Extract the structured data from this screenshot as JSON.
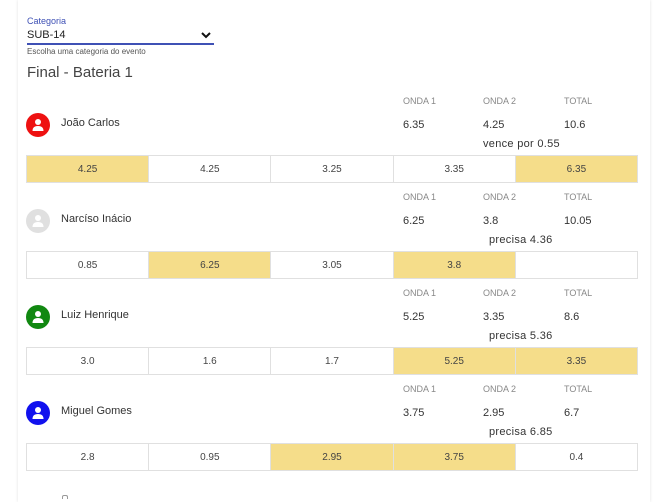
{
  "category": {
    "label": "Categoria",
    "value": "SUB-14",
    "help": "Escolha uma categoria do evento"
  },
  "heat_title": "Final - Bateria 1",
  "columns": {
    "wave1": "ONDA 1",
    "wave2": "ONDA 2",
    "total": "TOTAL"
  },
  "athletes": [
    {
      "name": "João Carlos",
      "avatar_color": "#ee1111",
      "onda1": "6.35",
      "onda2": "4.25",
      "total": "10.6",
      "status": "vence por 0.55",
      "waves": [
        "4.25",
        "4.25",
        "3.25",
        "3.35",
        "6.35"
      ],
      "highlight": [
        true,
        false,
        false,
        false,
        true
      ]
    },
    {
      "name": "Narcíso Inácio",
      "avatar_color": "#e0e0e0",
      "onda1": "6.25",
      "onda2": "3.8",
      "total": "10.05",
      "status": "precisa 4.36",
      "waves": [
        "0.85",
        "6.25",
        "3.05",
        "3.8",
        ""
      ],
      "highlight": [
        false,
        true,
        false,
        true,
        false
      ]
    },
    {
      "name": "Luiz Henrique",
      "avatar_color": "#118811",
      "onda1": "5.25",
      "onda2": "3.35",
      "total": "8.6",
      "status": "precisa 5.36",
      "waves": [
        "3.0",
        "1.6",
        "1.7",
        "5.25",
        "3.35"
      ],
      "highlight": [
        false,
        false,
        false,
        true,
        true
      ]
    },
    {
      "name": "Miguel Gomes",
      "avatar_color": "#1111ee",
      "onda1": "3.75",
      "onda2": "2.95",
      "total": "6.7",
      "status": "precisa 6.85",
      "waves": [
        "2.8",
        "0.95",
        "2.95",
        "3.75",
        "0.4"
      ],
      "highlight": [
        false,
        false,
        true,
        true,
        false
      ]
    }
  ],
  "colors": {
    "accent": "#3f51b5",
    "highlight": "#f5dd8a"
  }
}
